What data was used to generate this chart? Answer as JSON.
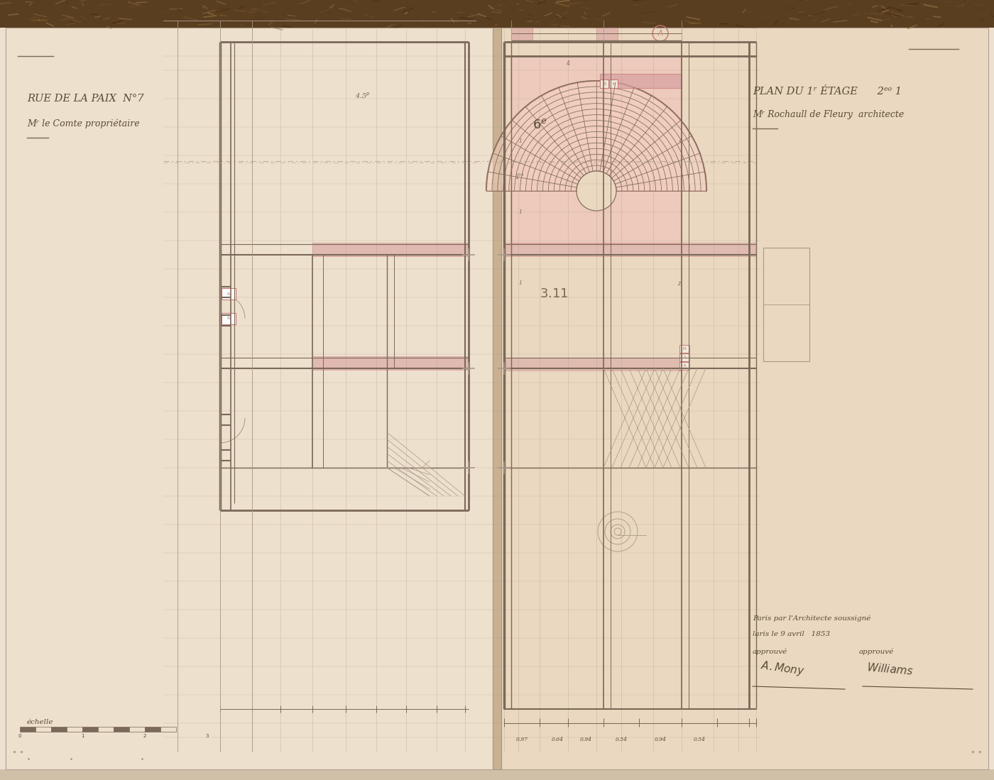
{
  "bg_left": "#ede0d0",
  "bg_right": "#e8dac8",
  "binding_color": "#c8b898",
  "top_binding": "#7a6040",
  "line_dark": "#7a6858",
  "line_red": "#c87878",
  "line_pink": "#d8a0a0",
  "line_light": "#a89888",
  "text_color": "#5a4a38",
  "text_light": "#7a6858",
  "title_left": "RUE DE LA PAIX  N°7",
  "subtitle_left": "Mʳ le Comte propriétaire",
  "title_right": "PLAN DU 1ʳ ÉTAGE      2ᵉᵒ 1",
  "subtitle_right": "Mʳ Rochaull de Fleury  architecte",
  "echelle": "échelle"
}
